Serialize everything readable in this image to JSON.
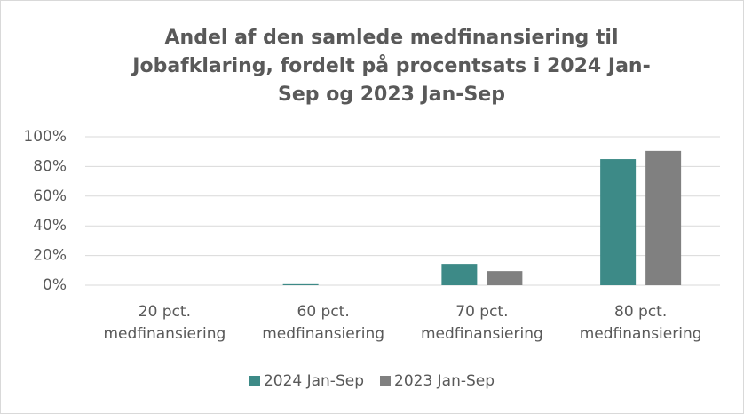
{
  "chart_data": {
    "type": "bar",
    "title": "Andel af den samlede medfinansiering til Jobafklaring, fordelt på procentsats i 2024 Jan-Sep og 2023 Jan-Sep",
    "categories": [
      "20 pct. medfinansiering",
      "60 pct. medfinansiering",
      "70 pct. medfinansiering",
      "80 pct. medfinansiering"
    ],
    "series": [
      {
        "name": "2024 Jan-Sep",
        "color": "#3d8a87",
        "values": [
          0,
          0.7,
          14.3,
          85
        ]
      },
      {
        "name": "2023 Jan-Sep",
        "color": "#808080",
        "values": [
          0,
          0,
          9.5,
          90.5
        ]
      }
    ],
    "ylim": [
      0,
      100
    ],
    "yticks": [
      {
        "value": 0,
        "label": "0%"
      },
      {
        "value": 20,
        "label": "20%"
      },
      {
        "value": 40,
        "label": "40%"
      },
      {
        "value": 60,
        "label": "60%"
      },
      {
        "value": 80,
        "label": "80%"
      },
      {
        "value": 100,
        "label": "100%"
      }
    ],
    "grid": true,
    "legend": "bottom"
  }
}
